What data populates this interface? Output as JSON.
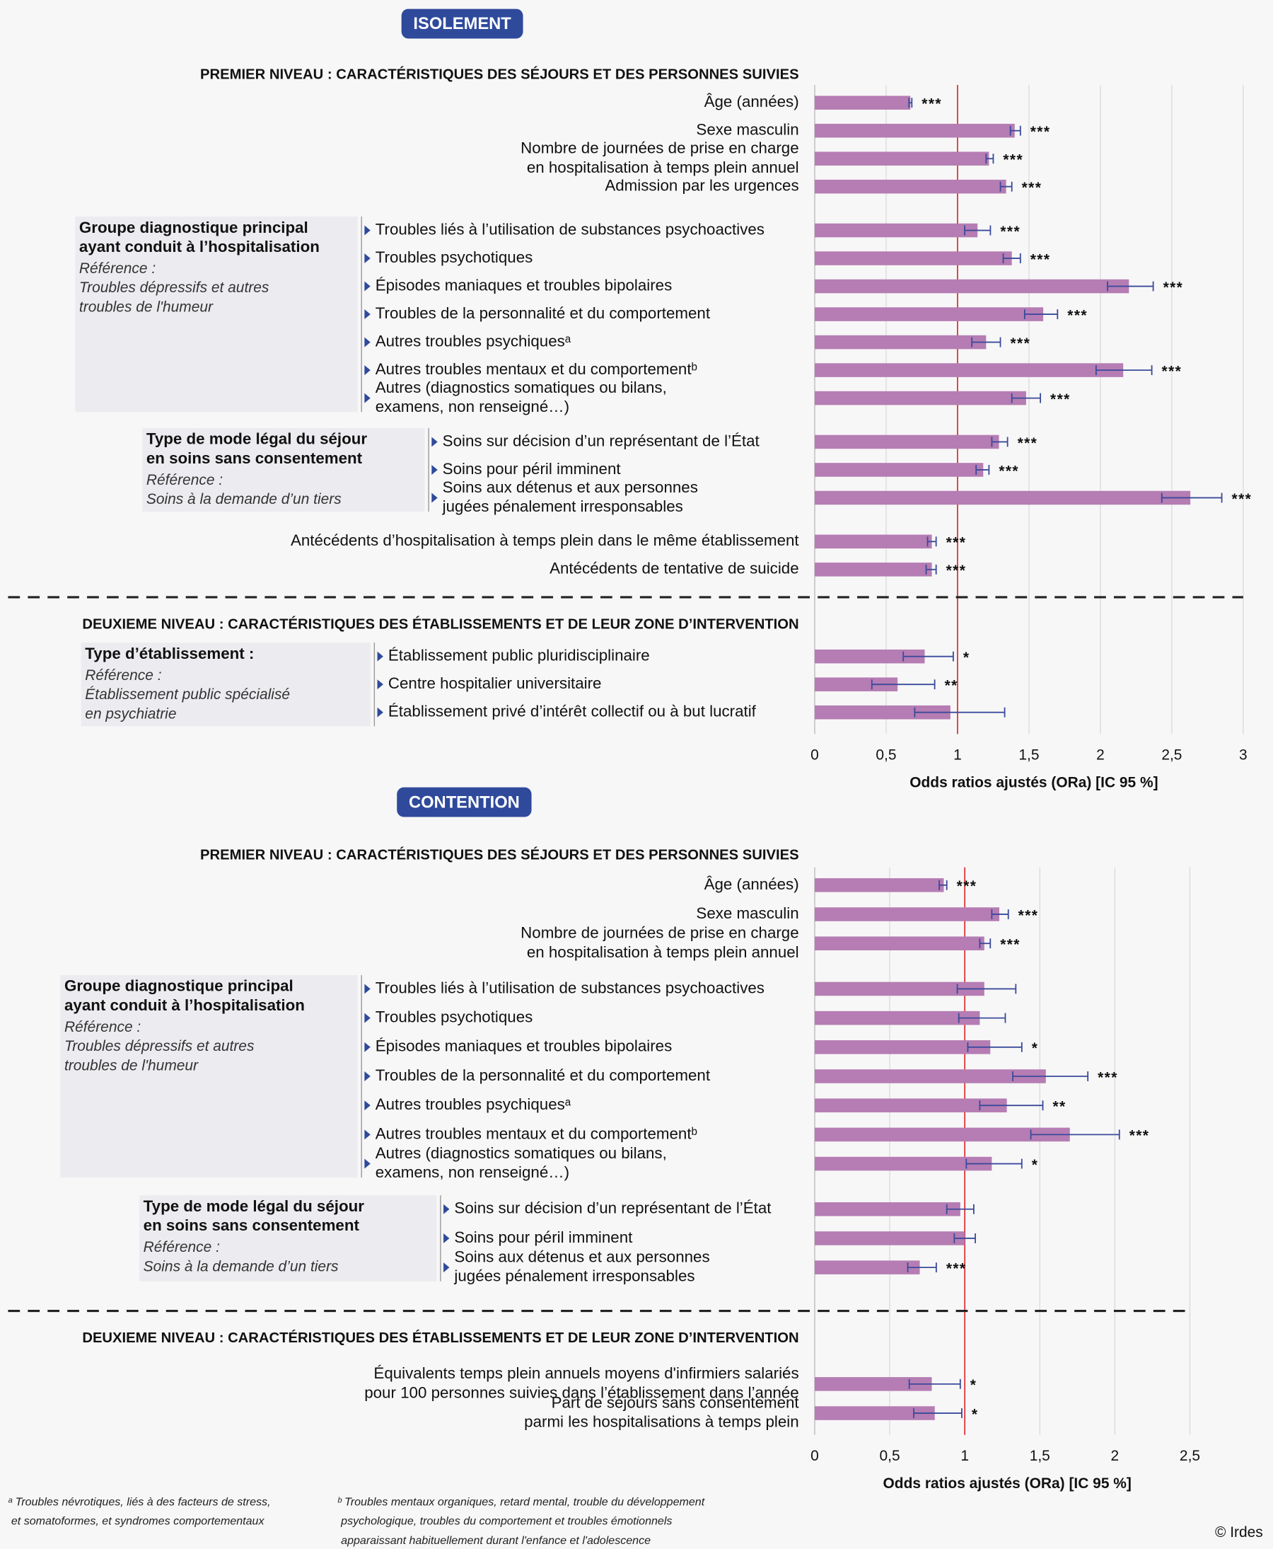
{
  "chart_data": [
    {
      "type": "bar",
      "orientation": "horizontal",
      "title": "ISOLEMENT",
      "xlabel": "Odds ratios ajustés (ORa) [IC 95 %]",
      "xlim": [
        0,
        3
      ],
      "xticks": [
        0,
        {
          "value": 0.5,
          "label": "0,5"
        },
        1,
        {
          "value": 1.5,
          "label": "1,5"
        },
        2,
        {
          "value": 2.5,
          "label": "2,5"
        },
        3
      ],
      "reference_line": 1,
      "grid": true,
      "color": "#b57db3",
      "error_color": "#3b4a9c",
      "levels": [
        {
          "title": "PREMIER NIVEAU : CARACTÉRISTIQUES DES SÉJOURS ET DES PERSONNES SUIVIES",
          "blocks": [
            {
              "categories": [
                "Âge (années)",
                "Sexe masculin",
                "Nombre de journées de prise en charge\nen hospitalisation à temps plein annuel",
                "Admission par les urgences"
              ],
              "values": [
                0.67,
                1.4,
                1.22,
                1.34
              ],
              "ci_low": [
                0.66,
                1.37,
                1.2,
                1.3
              ],
              "ci_high": [
                0.68,
                1.44,
                1.25,
                1.38
              ],
              "significance": [
                "***",
                "***",
                "***",
                "***"
              ]
            },
            {
              "group": "Groupe diagnostique principal\nayant conduit à l’hospitalisation",
              "reference": "Référence :\nTroubles dépressifs et autres\ntroubles de l'humeur",
              "categories": [
                "Troubles liés à l’utilisation de substances psychoactives",
                "Troubles psychotiques",
                "Épisodes maniaques et troubles bipolaires",
                "Troubles de la personnalité et du comportement",
                "Autres troubles psychiquesᵃ",
                "Autres troubles mentaux et du comportementᵇ",
                "Autres (diagnostics somatiques ou bilans,\nexamens, non renseigné…)"
              ],
              "values": [
                1.14,
                1.38,
                2.2,
                1.6,
                1.2,
                2.16,
                1.48
              ],
              "ci_low": [
                1.05,
                1.32,
                2.05,
                1.47,
                1.1,
                1.97,
                1.38
              ],
              "ci_high": [
                1.23,
                1.44,
                2.37,
                1.7,
                1.3,
                2.36,
                1.58
              ],
              "significance": [
                "***",
                "***",
                "***",
                "***",
                "***",
                "***",
                "***"
              ]
            },
            {
              "group": "Type de mode légal du séjour\nen soins sans consentement",
              "reference": "Référence :\nSoins à la demande d’un tiers",
              "categories": [
                "Soins sur décision d’un représentant de l’État",
                "Soins pour péril imminent",
                "Soins aux détenus et aux personnes\njugées pénalement irresponsables"
              ],
              "values": [
                1.29,
                1.18,
                2.63
              ],
              "ci_low": [
                1.24,
                1.13,
                2.43
              ],
              "ci_high": [
                1.35,
                1.22,
                2.85
              ],
              "significance": [
                "***",
                "***",
                "***"
              ]
            },
            {
              "categories": [
                "Antécédents d’hospitalisation à temps plein dans le même établissement",
                "Antécédents de tentative de suicide"
              ],
              "values": [
                0.82,
                0.82
              ],
              "ci_low": [
                0.79,
                0.78
              ],
              "ci_high": [
                0.85,
                0.85
              ],
              "significance": [
                "***",
                "***"
              ]
            }
          ]
        },
        {
          "title": "DEUXIEME NIVEAU : CARACTÉRISTIQUES DES ÉTABLISSEMENTS ET DE LEUR ZONE D’INTERVENTION",
          "blocks": [
            {
              "group": "Type d’établissement :",
              "reference": "Référence :\nÉtablissement public spécialisé\nen psychiatrie",
              "categories": [
                "Établissement public pluridisciplinaire",
                "Centre hospitalier universitaire",
                "Établissement privé d’intérêt collectif ou à but lucratif"
              ],
              "values": [
                0.77,
                0.58,
                0.95
              ],
              "ci_low": [
                0.62,
                0.4,
                0.7
              ],
              "ci_high": [
                0.97,
                0.84,
                1.33
              ],
              "significance": [
                "*",
                "**",
                null
              ]
            }
          ]
        }
      ]
    },
    {
      "type": "bar",
      "orientation": "horizontal",
      "title": "CONTENTION",
      "xlabel": "Odds ratios ajustés (ORa) [IC 95 %]",
      "xlim": [
        0,
        2.5
      ],
      "xticks": [
        0,
        {
          "value": 0.5,
          "label": "0,5"
        },
        1,
        {
          "value": 1.5,
          "label": "1,5"
        },
        2,
        {
          "value": 2.5,
          "label": "2,5"
        }
      ],
      "reference_line": 1,
      "grid": true,
      "color": "#b57db3",
      "error_color": "#3b4a9c",
      "levels": [
        {
          "title": "PREMIER NIVEAU : CARACTÉRISTIQUES DES SÉJOURS ET DES PERSONNES SUIVIES",
          "blocks": [
            {
              "categories": [
                "Âge (années)",
                "Sexe masculin",
                "Nombre de journées de prise en charge\nen hospitalisation à temps plein annuel"
              ],
              "values": [
                0.86,
                1.23,
                1.13
              ],
              "ci_low": [
                0.83,
                1.18,
                1.1
              ],
              "ci_high": [
                0.88,
                1.29,
                1.17
              ],
              "significance": [
                "***",
                "***",
                "***"
              ]
            },
            {
              "group": "Groupe diagnostique principal\nayant conduit à l’hospitalisation",
              "reference": "Référence :\nTroubles dépressifs et autres\ntroubles de l'humeur",
              "categories": [
                "Troubles liés à l’utilisation de substances psychoactives",
                "Troubles psychotiques",
                "Épisodes maniaques et troubles bipolaires",
                "Troubles de la personnalité et du comportement",
                "Autres troubles psychiquesᵃ",
                "Autres troubles mentaux et du comportementᵇ",
                "Autres (diagnostics somatiques ou bilans,\nexamens, non renseigné…)"
              ],
              "values": [
                1.13,
                1.1,
                1.17,
                1.54,
                1.28,
                1.7,
                1.18
              ],
              "ci_low": [
                0.95,
                0.96,
                1.02,
                1.32,
                1.1,
                1.44,
                1.01
              ],
              "ci_high": [
                1.34,
                1.27,
                1.38,
                1.82,
                1.52,
                2.03,
                1.38
              ],
              "significance": [
                null,
                null,
                "*",
                "***",
                "**",
                "***",
                "*"
              ]
            },
            {
              "group": "Type de mode légal du séjour\nen soins sans consentement",
              "reference": "Référence :\nSoins à la demande d’un tiers",
              "categories": [
                "Soins sur décision d’un représentant de l’État",
                "Soins pour péril imminent",
                "Soins aux détenus et aux personnes\njugées pénalement irresponsables"
              ],
              "values": [
                0.97,
                1.0,
                0.7
              ],
              "ci_low": [
                0.88,
                0.93,
                0.62
              ],
              "ci_high": [
                1.06,
                1.07,
                0.81
              ],
              "significance": [
                null,
                null,
                "***"
              ]
            }
          ]
        },
        {
          "title": "DEUXIEME NIVEAU : CARACTÉRISTIQUES DES ÉTABLISSEMENTS ET DE LEUR ZONE D’INTERVENTION",
          "blocks": [
            {
              "categories": [
                "Équivalents temps plein annuels moyens d'infirmiers salariés\npour 100 personnes suivies dans l’établissement dans l’année",
                "Part de séjours sans consentement\nparmi les hospitalisations à temps plein"
              ],
              "values": [
                0.78,
                0.8
              ],
              "ci_low": [
                0.63,
                0.66
              ],
              "ci_high": [
                0.97,
                0.98
              ],
              "significance": [
                "*",
                "*"
              ]
            }
          ]
        }
      ]
    }
  ],
  "footnotes": [
    "ᵃ Troubles névrotiques, liés à des facteurs de stress,\n   et somatoformes, et syndromes comportementaux",
    "ᵇ Troubles mentaux organiques, retard mental, trouble du développement\n   psychologique, troubles du comportement et troubles émotionnels\n   apparaissant habituellement durant l'enfance et l'adolescence"
  ],
  "credit": "© Irdes"
}
